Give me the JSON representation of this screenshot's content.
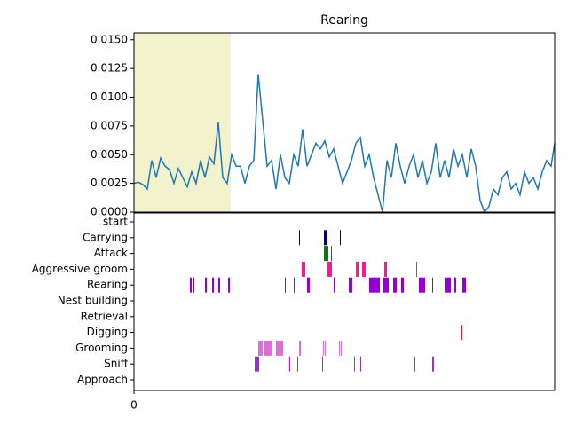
{
  "chart_data": [
    {
      "type": "line",
      "title": "Rearing",
      "x": [
        0,
        5,
        10,
        15,
        20,
        25,
        30,
        35,
        40,
        45,
        50,
        55,
        60,
        65,
        70,
        75,
        80,
        85,
        90,
        95,
        100,
        105,
        110,
        115,
        120,
        125,
        130,
        135,
        140,
        145,
        150,
        155,
        160,
        165,
        170,
        175,
        180,
        185,
        190,
        195,
        200,
        205,
        210,
        215,
        220,
        225,
        230,
        235,
        240,
        245,
        250,
        255,
        260,
        265,
        270,
        275,
        280,
        285,
        290,
        295,
        300,
        305,
        310,
        315,
        320,
        325,
        330,
        335,
        340,
        345,
        350,
        355,
        360,
        365,
        370,
        375,
        380,
        385,
        390,
        395,
        400,
        405,
        410,
        415,
        420,
        425,
        430,
        435,
        440,
        445,
        450,
        455,
        460,
        465,
        470,
        474
      ],
      "values": [
        0.0025,
        0.0026,
        0.0024,
        0.002,
        0.0045,
        0.003,
        0.0047,
        0.004,
        0.0037,
        0.0025,
        0.0038,
        0.003,
        0.0022,
        0.0035,
        0.0025,
        0.0045,
        0.003,
        0.0048,
        0.0042,
        0.0078,
        0.003,
        0.0025,
        0.005,
        0.004,
        0.004,
        0.0025,
        0.004,
        0.0045,
        0.012,
        0.008,
        0.004,
        0.0045,
        0.002,
        0.005,
        0.003,
        0.0025,
        0.005,
        0.004,
        0.0072,
        0.004,
        0.005,
        0.006,
        0.0055,
        0.0062,
        0.0048,
        0.0055,
        0.004,
        0.0025,
        0.0035,
        0.0045,
        0.006,
        0.0065,
        0.004,
        0.005,
        0.003,
        0.0015,
        0.0,
        0.0045,
        0.003,
        0.006,
        0.004,
        0.0025,
        0.004,
        0.005,
        0.003,
        0.0045,
        0.0025,
        0.0035,
        0.006,
        0.003,
        0.0045,
        0.003,
        0.0055,
        0.004,
        0.005,
        0.003,
        0.0055,
        0.004,
        0.001,
        0.0,
        0.0005,
        0.002,
        0.0015,
        0.003,
        0.0035,
        0.002,
        0.0025,
        0.0015,
        0.0035,
        0.0025,
        0.003,
        0.002,
        0.0035,
        0.0045,
        0.004,
        0.006
      ],
      "color": "#1f77b4",
      "span": [
        0,
        109
      ],
      "span_color": "#f2f2cc",
      "xlim": [
        0,
        474
      ],
      "ylim": [
        0,
        0.0156
      ],
      "yticks": [
        {
          "value": 0,
          "label": "0.0000"
        },
        {
          "value": 0.0025,
          "label": "0.0025"
        },
        {
          "value": 0.005,
          "label": "0.0050"
        },
        {
          "value": 0.0075,
          "label": "0.0075"
        },
        {
          "value": 0.01,
          "label": "0.0100"
        },
        {
          "value": 0.0125,
          "label": "0.0125"
        },
        {
          "value": 0.015,
          "label": "0.0150"
        }
      ]
    },
    {
      "type": "broken_barh",
      "categories": [
        "start",
        "Carrying",
        "Attack",
        "Aggressive groom",
        "Rearing",
        "Nest building",
        "Retrieval",
        "Digging",
        "Grooming",
        "Sniff",
        "Approach"
      ],
      "rows": [
        {
          "row": 1,
          "color": "#000080",
          "intervals": [
            [
              186,
              187
            ],
            [
              214,
              218
            ],
            [
              232,
              233
            ]
          ]
        },
        {
          "row": 2,
          "color": "#008000",
          "intervals": [
            [
              214,
              219
            ],
            [
              222,
              223
            ]
          ]
        },
        {
          "row": 3,
          "color": "#ff1493",
          "intervals": [
            [
              189,
              193
            ],
            [
              218,
              223
            ],
            [
              250,
              253
            ],
            [
              257,
              261
            ],
            [
              282,
              285
            ],
            [
              318,
              319
            ]
          ]
        },
        {
          "row": 4,
          "color": "#9400d3",
          "intervals": [
            [
              63,
              65
            ],
            [
              67,
              68
            ],
            [
              80,
              82
            ],
            [
              88,
              90
            ],
            [
              95,
              97
            ],
            [
              106,
              108
            ],
            [
              170,
              171
            ],
            [
              180,
              181
            ],
            [
              195,
              198
            ],
            [
              225,
              227
            ],
            [
              242,
              246
            ],
            [
              265,
              277
            ],
            [
              280,
              287
            ],
            [
              292,
              296
            ],
            [
              301,
              304
            ],
            [
              321,
              328
            ],
            [
              336,
              337
            ],
            [
              350,
              357
            ],
            [
              361,
              363
            ],
            [
              370,
              374
            ]
          ]
        },
        {
          "row": 7,
          "color": "#e31a1c",
          "intervals": [
            [
              369,
              370
            ]
          ]
        },
        {
          "row": 8,
          "color": "#da70d6",
          "intervals": [
            [
              140,
              145
            ],
            [
              147,
              156
            ],
            [
              160,
              168
            ],
            [
              186,
              188
            ],
            [
              213,
              214
            ],
            [
              215,
              216
            ],
            [
              231,
              232
            ],
            [
              233,
              234
            ]
          ]
        },
        {
          "row": 9,
          "color": "#9932cc",
          "intervals": [
            [
              136,
              141
            ],
            [
              173,
              174
            ],
            [
              175,
              176
            ],
            [
              184,
              185
            ],
            [
              212,
              213
            ],
            [
              248,
              249
            ],
            [
              255,
              256
            ],
            [
              316,
              317
            ],
            [
              336,
              338
            ]
          ]
        }
      ],
      "xlim": [
        0,
        474
      ],
      "xticks": [
        0
      ]
    }
  ]
}
